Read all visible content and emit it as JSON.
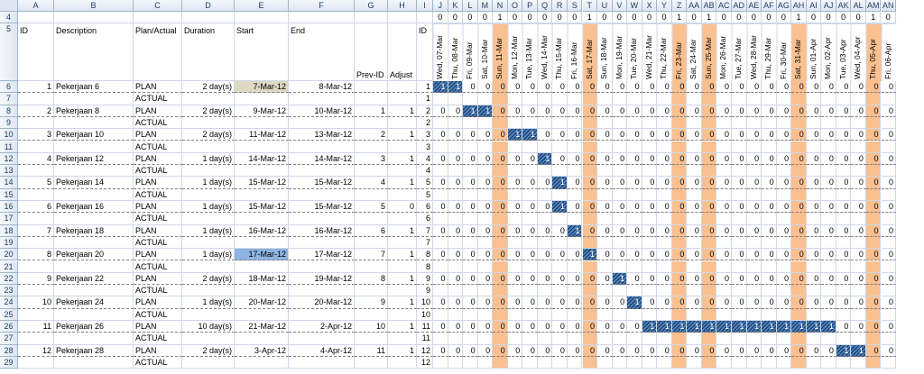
{
  "columns": [
    "A",
    "B",
    "C",
    "D",
    "E",
    "F",
    "G",
    "H",
    "I",
    "J",
    "K",
    "L",
    "M",
    "N",
    "O",
    "P",
    "Q",
    "R",
    "S",
    "T",
    "U",
    "V",
    "W",
    "X",
    "Y",
    "Z",
    "AA",
    "AB",
    "AC",
    "AD",
    "AE",
    "AF",
    "AG",
    "AH",
    "AI",
    "AJ",
    "AK",
    "AL",
    "AM",
    "AN"
  ],
  "row_numbers": [
    4,
    5,
    6,
    7,
    8,
    9,
    10,
    11,
    12,
    13,
    14,
    15,
    16,
    17,
    18,
    19,
    20,
    21,
    22,
    23,
    24,
    25,
    26,
    27,
    28,
    29
  ],
  "weekend_flags": [
    "0",
    "0",
    "0",
    "0",
    "1",
    "0",
    "0",
    "0",
    "0",
    "0",
    "1",
    "0",
    "0",
    "0",
    "0",
    "0",
    "1",
    "0",
    "1",
    "0",
    "0",
    "0",
    "0",
    "0",
    "1",
    "0",
    "0",
    "0",
    "0",
    "1",
    "0"
  ],
  "headers": {
    "id": "ID",
    "description": "Description",
    "plan_actual": "Plan/Actual",
    "duration": "Duration",
    "start": "Start",
    "end": "End",
    "prev_id": "Prev-ID",
    "adjust": "Adjust",
    "id2": "ID"
  },
  "dates": [
    "Wed, 07-Mar",
    "Thu, 08-Mar",
    "Fri, 09-Mar",
    "Sat, 10-Mar",
    "Sun, 11-Mar",
    "Mon, 12-Mar",
    "Tue, 13-Mar",
    "Wed, 14-Mar",
    "Thu, 15-Mar",
    "Fri, 16-Mar",
    "Sat, 17-Mar",
    "Sun, 18-Mar",
    "Mon, 19-Mar",
    "Tue, 20-Mar",
    "Wed, 21-Mar",
    "Thu, 22-Mar",
    "Fri, 23-Mar",
    "Sat, 24-Mar",
    "Sun, 25-Mar",
    "Mon, 26-Mar",
    "Tue, 27-Mar",
    "Wed, 28-Mar",
    "Thu, 29-Mar",
    "Fri, 30-Mar",
    "Sat, 31-Mar",
    "Sun, 01-Apr",
    "Mon, 02-Apr",
    "Tue, 03-Apr",
    "Wed, 04-Apr",
    "Thu, 05-Apr",
    "Fri, 06-Apr"
  ],
  "tasks": [
    {
      "id": "1",
      "desc": "Pekerjaan 6",
      "duration": "2 day(s)",
      "start": "7-Mar-12",
      "end": "8-Mar-12",
      "prev": "",
      "adjust": "",
      "bar": [
        0,
        1
      ]
    },
    {
      "id": "2",
      "desc": "Pekerjaan 8",
      "duration": "2 day(s)",
      "start": "9-Mar-12",
      "end": "10-Mar-12",
      "prev": "1",
      "adjust": "1",
      "bar": [
        2,
        3
      ]
    },
    {
      "id": "3",
      "desc": "Pekerjaan 10",
      "duration": "2 day(s)",
      "start": "11-Mar-12",
      "end": "13-Mar-12",
      "prev": "2",
      "adjust": "1",
      "bar": [
        5,
        6
      ]
    },
    {
      "id": "4",
      "desc": "Pekerjaan 12",
      "duration": "1 day(s)",
      "start": "14-Mar-12",
      "end": "14-Mar-12",
      "prev": "3",
      "adjust": "1",
      "bar": [
        7,
        7
      ]
    },
    {
      "id": "5",
      "desc": "Pekerjaan 14",
      "duration": "1 day(s)",
      "start": "15-Mar-12",
      "end": "15-Mar-12",
      "prev": "4",
      "adjust": "1",
      "bar": [
        8,
        8
      ]
    },
    {
      "id": "6",
      "desc": "Pekerjaan 16",
      "duration": "1 day(s)",
      "start": "15-Mar-12",
      "end": "15-Mar-12",
      "prev": "5",
      "adjust": "0",
      "bar": [
        8,
        8
      ]
    },
    {
      "id": "7",
      "desc": "Pekerjaan 18",
      "duration": "1 day(s)",
      "start": "16-Mar-12",
      "end": "16-Mar-12",
      "prev": "6",
      "adjust": "1",
      "bar": [
        9,
        9
      ]
    },
    {
      "id": "8",
      "desc": "Pekerjaan 20",
      "duration": "1 day(s)",
      "start": "17-Mar-12",
      "end": "17-Mar-12",
      "prev": "7",
      "adjust": "1",
      "bar": [
        10,
        10
      ]
    },
    {
      "id": "9",
      "desc": "Pekerjaan 22",
      "duration": "2 day(s)",
      "start": "18-Mar-12",
      "end": "19-Mar-12",
      "prev": "8",
      "adjust": "1",
      "bar": [
        12,
        12
      ]
    },
    {
      "id": "10",
      "desc": "Pekerjaan 24",
      "duration": "1 day(s)",
      "start": "20-Mar-12",
      "end": "20-Mar-12",
      "prev": "9",
      "adjust": "1",
      "bar": [
        13,
        13
      ]
    },
    {
      "id": "11",
      "desc": "Pekerjaan 26",
      "duration": "10 day(s)",
      "start": "21-Mar-12",
      "end": "2-Apr-12",
      "prev": "10",
      "adjust": "1",
      "bar": [
        14,
        26
      ]
    },
    {
      "id": "12",
      "desc": "Pekerjaan 28",
      "duration": "2 day(s)",
      "start": "3-Apr-12",
      "end": "4-Apr-12",
      "prev": "11",
      "adjust": "1",
      "bar": [
        27,
        28
      ]
    }
  ],
  "plan_label": "PLAN",
  "actual_label": "ACTUAL",
  "zero": "0",
  "one": "1",
  "colors": {
    "weekend": "#fac090",
    "bar": "#4f81bd",
    "selected_start": "#8db4e2"
  }
}
